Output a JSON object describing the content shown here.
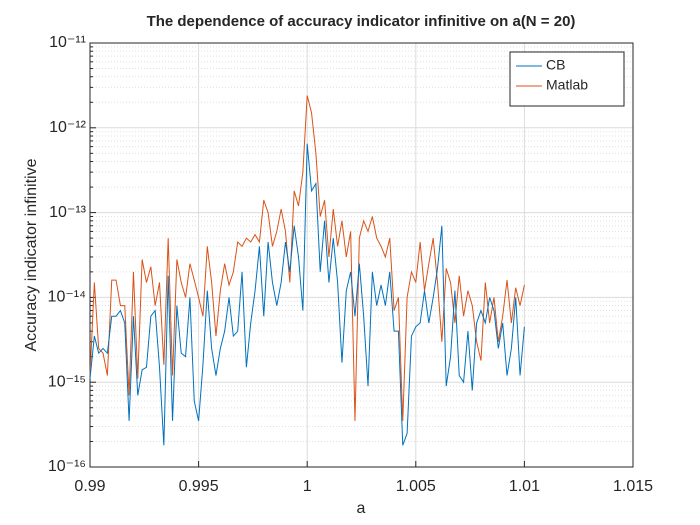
{
  "chart_data": {
    "type": "line",
    "title": "The dependence of accuracy indicator infinitive on a(N = 20)",
    "xlabel": "a",
    "ylabel": "Accuracy indicator infinitive",
    "x": [
      0.99,
      0.9902,
      0.9904,
      0.9906,
      0.9908,
      0.991,
      0.9912,
      0.9914,
      0.9916,
      0.9918,
      0.992,
      0.9922,
      0.9924,
      0.9926,
      0.9928,
      0.993,
      0.9932,
      0.9934,
      0.9936,
      0.9938,
      0.994,
      0.9942,
      0.9944,
      0.9946,
      0.9948,
      0.995,
      0.9952,
      0.9954,
      0.9956,
      0.9958,
      0.996,
      0.9962,
      0.9964,
      0.9966,
      0.9968,
      0.997,
      0.9972,
      0.9974,
      0.9976,
      0.9978,
      0.998,
      0.9982,
      0.9984,
      0.9986,
      0.9988,
      0.999,
      0.9992,
      0.9994,
      0.9996,
      0.9998,
      1,
      1.0002,
      1.0004,
      1.0006,
      1.0008,
      1.001,
      1.0012,
      1.0014,
      1.0016,
      1.0018,
      1.002,
      1.0022,
      1.0024,
      1.0026,
      1.0028,
      1.003,
      1.0032,
      1.0034,
      1.0036,
      1.0038,
      1.004,
      1.0042,
      1.0044,
      1.0046,
      1.0048,
      1.005,
      1.0052,
      1.0054,
      1.0056,
      1.0058,
      1.006,
      1.0062,
      1.0064,
      1.0066,
      1.0068,
      1.007,
      1.0072,
      1.0074,
      1.0076,
      1.0078,
      1.008,
      1.0082,
      1.0084,
      1.0086,
      1.0088,
      1.009,
      1.0092,
      1.0094,
      1.0096,
      1.0098,
      1.01
    ],
    "series": [
      {
        "name": "CB",
        "color": "#0072BD",
        "values": [
          1.1e-15,
          3.5e-15,
          2.2e-15,
          2.5e-15,
          2.2e-15,
          6e-15,
          6e-15,
          7e-15,
          5e-15,
          3.5e-16,
          6e-15,
          7e-16,
          1.4e-15,
          1.5e-15,
          6e-15,
          7e-15,
          1.5e-15,
          1.8e-16,
          1.8e-14,
          3.5e-16,
          8e-15,
          2.2e-15,
          2e-15,
          1e-14,
          6e-16,
          3.5e-16,
          1.6e-15,
          1.2e-14,
          2.5e-15,
          1.2e-15,
          2.5e-15,
          4e-15,
          1e-14,
          3.5e-15,
          4e-15,
          2e-14,
          1.5e-15,
          5e-15,
          1.2e-14,
          4e-14,
          6e-15,
          4.5e-14,
          1.5e-14,
          8e-15,
          1.5e-14,
          4.5e-14,
          2e-14,
          7e-14,
          3e-14,
          7e-15,
          6.5e-13,
          1.8e-13,
          2.2e-13,
          2e-14,
          8e-14,
          1.5e-14,
          5e-14,
          1.5e-14,
          1.7e-15,
          1.2e-14,
          2e-14,
          6e-15,
          2.5e-14,
          6e-15,
          9e-16,
          2e-14,
          8e-15,
          1.4e-14,
          8e-15,
          2e-14,
          4e-15,
          4e-15,
          1.8e-16,
          2.5e-16,
          3.5e-15,
          4.5e-15,
          5e-15,
          1.2e-14,
          5e-15,
          1e-14,
          2.2e-14,
          7e-14,
          9e-16,
          2e-15,
          1.2e-14,
          1.2e-15,
          1e-15,
          4e-15,
          8e-16,
          5e-15,
          7e-15,
          5e-15,
          1e-14,
          7e-15,
          2.5e-15,
          5e-15,
          1.2e-15,
          2.5e-15,
          1e-14,
          1.2e-15,
          4.5e-15
        ]
      },
      {
        "name": "Matlab",
        "color": "#D95319",
        "values": [
          1.2e-15,
          1.5e-14,
          2.5e-15,
          2.2e-15,
          1.2e-15,
          1.6e-14,
          1.6e-14,
          8e-15,
          8e-15,
          7e-16,
          2e-14,
          1.1e-15,
          2.8e-14,
          1.5e-14,
          2.3e-14,
          8e-15,
          1.5e-14,
          1.6e-15,
          5e-14,
          1.2e-15,
          2.8e-14,
          1.5e-14,
          1e-14,
          2.5e-14,
          1.6e-14,
          1e-14,
          6e-15,
          4e-14,
          1.5e-14,
          3.5e-15,
          1.2e-14,
          2.5e-14,
          1.4e-14,
          2e-14,
          4.5e-14,
          4e-14,
          5e-14,
          4.5e-14,
          5.5e-14,
          4.5e-14,
          1.4e-13,
          1e-13,
          4e-14,
          6e-14,
          1.1e-13,
          6e-14,
          1.5e-14,
          1.8e-13,
          1.2e-13,
          3e-13,
          2.4e-12,
          1.5e-12,
          5e-13,
          9e-14,
          1.4e-13,
          3e-14,
          1.1e-13,
          4e-14,
          8e-14,
          3e-14,
          6e-14,
          3.5e-16,
          5e-14,
          8e-14,
          6e-14,
          9e-14,
          5e-14,
          4e-14,
          3e-14,
          5e-14,
          7e-15,
          1e-14,
          3.5e-16,
          1e-14,
          2e-14,
          1.5e-14,
          4.5e-14,
          1.2e-14,
          2.5e-14,
          5e-14,
          1.5e-14,
          3e-15,
          2.2e-14,
          1.5e-14,
          5e-15,
          1.8e-14,
          6e-15,
          1.2e-14,
          8e-15,
          3e-15,
          1.8e-15,
          1.5e-14,
          5e-15,
          1e-14,
          3e-15,
          6e-15,
          1.6e-14,
          5e-15,
          1.3e-14,
          8e-15,
          1.4e-14
        ]
      }
    ],
    "xlim": [
      0.99,
      1.015
    ],
    "xticks": [
      0.99,
      0.995,
      1,
      1.005,
      1.01,
      1.015
    ],
    "ylim": [
      1e-16,
      1e-11
    ],
    "yticks": [
      {
        "value": 1e-16,
        "label": "10⁻¹⁶"
      },
      {
        "value": 1e-15,
        "label": "10⁻¹⁵"
      },
      {
        "value": 1e-14,
        "label": "10⁻¹⁴"
      },
      {
        "value": 1e-13,
        "label": "10⁻¹³"
      },
      {
        "value": 1e-12,
        "label": "10⁻¹²"
      },
      {
        "value": 1e-11,
        "label": "10⁻¹¹"
      }
    ],
    "yscale": "log",
    "grid": true,
    "minor_grid": true,
    "legend": "northeast"
  }
}
